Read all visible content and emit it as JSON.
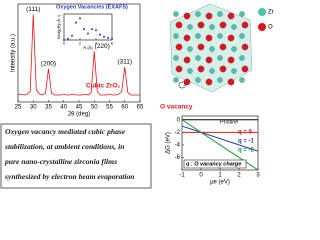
{
  "chart_data": [
    {
      "type": "line",
      "xlabel": "2θ (deg)",
      "ylabel": "Intensity (a.u.)",
      "annotation": "Cubic ZrO₂",
      "x": [
        25,
        26,
        27,
        28,
        29,
        30,
        31,
        32,
        33,
        34,
        35,
        36,
        37,
        38,
        39,
        40,
        41,
        42,
        43,
        44,
        45,
        46,
        47,
        48,
        49,
        50,
        51,
        52,
        53,
        54,
        55,
        56,
        57,
        58,
        59,
        60,
        61,
        62,
        63,
        64,
        65
      ],
      "series": [
        {
          "color": "#e8141c",
          "values": [
            8,
            9,
            8,
            9,
            12,
            100,
            14,
            9,
            8,
            10,
            38,
            10,
            8,
            8,
            8,
            9,
            8,
            8,
            9,
            8,
            8,
            8,
            9,
            8,
            11,
            58,
            12,
            8,
            8,
            8,
            9,
            8,
            8,
            9,
            12,
            40,
            11,
            8,
            8,
            8,
            8
          ]
        }
      ],
      "peak_labels": [
        {
          "label": "(111)",
          "x": 30
        },
        {
          "label": "(200)",
          "x": 35
        },
        {
          "label": "(220)",
          "x": 50
        },
        {
          "label": "(311)",
          "x": 60
        }
      ],
      "xlim": [
        25,
        65
      ],
      "xticks": [
        25,
        30,
        35,
        40,
        45,
        50,
        55,
        60,
        65
      ],
      "ylim": [
        0,
        112
      ]
    },
    {
      "type": "scatter",
      "title": "Oxygen Vacancies (EXAFS)",
      "xlabel": "R (Å)",
      "ylabel": "Mod[χ(R)] (Å⁻³)",
      "x": [
        0,
        0.5,
        1,
        1.5,
        2,
        2.5,
        3,
        3.5,
        4,
        4.5,
        5,
        5.5,
        6
      ],
      "series": [
        {
          "color": "#1f3fbf",
          "values": [
            0,
            0.05,
            0.2,
            0.8,
            1.0,
            0.5,
            0.3,
            0.5,
            0.45,
            0.25,
            0.15,
            0.1,
            0.05
          ]
        }
      ],
      "xlim": [
        0,
        6
      ],
      "xticks": [
        0,
        2,
        4,
        6
      ],
      "ylim": [
        0,
        1.2
      ]
    },
    {
      "type": "line",
      "xlabel": "μe (eV)",
      "ylabel": "ΔG (eV)",
      "annotation": "Pristine",
      "note": "q : O vacancy charge",
      "x": [
        -1,
        3
      ],
      "series": [
        {
          "name": "Pristine",
          "color": "#000000",
          "values": [
            0,
            0
          ]
        },
        {
          "name": "q = 0",
          "color": "#e8141c",
          "values": [
            -2,
            -2
          ]
        },
        {
          "name": "q = -1",
          "color": "#1f3fbf",
          "values": [
            -1,
            -5
          ]
        },
        {
          "name": "q = -2",
          "color": "#1a9a2a",
          "values": [
            0,
            -8
          ]
        }
      ],
      "xlim": [
        -1,
        3
      ],
      "xticks": [
        -1,
        0,
        1,
        2,
        3
      ],
      "ylim": [
        -8,
        0.6
      ],
      "yticks": [
        -6,
        -4,
        -2,
        0
      ]
    }
  ],
  "structure": {
    "legend": [
      "Zr",
      "O"
    ],
    "label": "O vacancy"
  },
  "caption": [
    "Oxygen vacancy mediated cubic phase",
    "stabilization, at ambient conditions, in",
    "pure nano-crystalline zirconia films",
    "synthesized by electron beam evaporation"
  ]
}
